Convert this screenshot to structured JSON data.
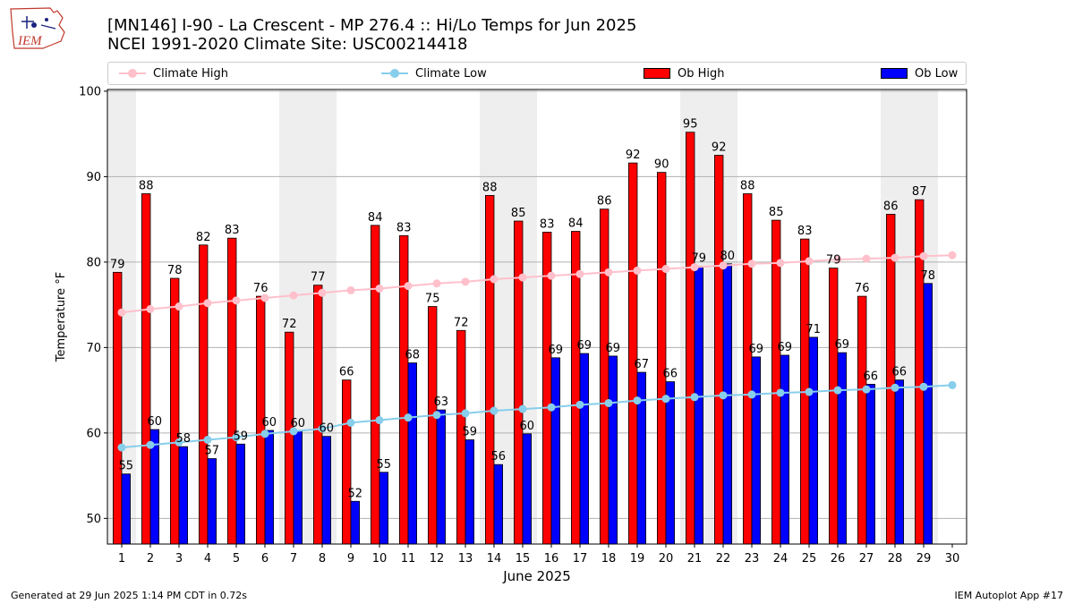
{
  "logo": {
    "text": "IEM"
  },
  "header": {
    "title_line1": "[MN146] I-90 - La Crescent - MP 276.4  :: Hi/Lo Temps for Jun 2025",
    "title_line2": "NCEI 1991-2020 Climate Site: USC00214418"
  },
  "footer": {
    "left": "Generated at 29 Jun 2025 1:14 PM CDT in 0.72s",
    "right": "IEM Autoplot App #17"
  },
  "colors": {
    "ob_high": "#ff0000",
    "ob_low": "#0000ff",
    "climate_high": "#ffc0cb",
    "climate_low": "#87ceeb",
    "weekend_shade": "#eeeeee",
    "grid": "#b0b0b0"
  },
  "chart_data": {
    "type": "bar",
    "xlabel": "June 2025",
    "ylabel": "Temperature °F",
    "ylim": [
      47,
      100.2
    ],
    "yticks": [
      50,
      60,
      70,
      80,
      90,
      100
    ],
    "grid": "horizontal",
    "legend_position": "top",
    "weekend_days": [
      1,
      7,
      8,
      14,
      15,
      21,
      22,
      28,
      29
    ],
    "categories": [
      "1",
      "2",
      "3",
      "4",
      "5",
      "6",
      "7",
      "8",
      "9",
      "10",
      "11",
      "12",
      "13",
      "14",
      "15",
      "16",
      "17",
      "18",
      "19",
      "20",
      "21",
      "22",
      "23",
      "24",
      "25",
      "26",
      "27",
      "28",
      "29",
      "30"
    ],
    "bar_series": [
      {
        "name": "Ob High",
        "values": [
          79,
          88,
          78,
          82,
          83,
          76,
          72,
          77,
          66,
          84,
          83,
          75,
          72,
          88,
          85,
          83,
          84,
          86,
          92,
          90,
          95,
          92,
          88,
          85,
          83,
          79,
          76,
          86,
          87
        ],
        "plotted": [
          78.8,
          88.0,
          78.1,
          82.0,
          82.8,
          76.0,
          71.8,
          77.3,
          66.2,
          84.3,
          83.1,
          74.8,
          72.0,
          87.8,
          84.8,
          83.5,
          83.6,
          86.2,
          91.6,
          90.5,
          95.2,
          92.5,
          88.0,
          84.9,
          82.7,
          79.3,
          76.0,
          85.6,
          87.3
        ]
      },
      {
        "name": "Ob Low",
        "values": [
          55,
          60,
          58,
          57,
          59,
          60,
          60,
          60,
          52,
          55,
          68,
          63,
          59,
          56,
          60,
          69,
          69,
          69,
          67,
          66,
          79,
          80,
          69,
          69,
          71,
          69,
          66,
          66,
          78
        ],
        "plotted": [
          55.2,
          60.4,
          58.4,
          57.0,
          58.7,
          60.3,
          60.2,
          59.6,
          52.0,
          55.4,
          68.2,
          62.7,
          59.2,
          56.3,
          59.9,
          68.8,
          69.3,
          69.0,
          67.1,
          66.0,
          79.5,
          79.8,
          68.9,
          69.1,
          71.2,
          69.4,
          65.7,
          66.2,
          77.5
        ]
      }
    ],
    "line_series": [
      {
        "name": "Climate High",
        "values": [
          74.1,
          74.5,
          74.8,
          75.2,
          75.5,
          75.8,
          76.1,
          76.4,
          76.7,
          76.9,
          77.2,
          77.5,
          77.7,
          78.0,
          78.2,
          78.4,
          78.6,
          78.8,
          79.0,
          79.2,
          79.4,
          79.6,
          79.8,
          79.9,
          80.1,
          80.3,
          80.4,
          80.5,
          80.7,
          80.8
        ]
      },
      {
        "name": "Climate Low",
        "values": [
          58.3,
          58.6,
          58.9,
          59.2,
          59.5,
          59.9,
          60.2,
          60.5,
          61.2,
          61.5,
          61.8,
          62.1,
          62.3,
          62.6,
          62.8,
          63.0,
          63.3,
          63.5,
          63.8,
          64.0,
          64.2,
          64.4,
          64.5,
          64.7,
          64.8,
          65.0,
          65.1,
          65.3,
          65.4,
          65.6
        ]
      }
    ]
  }
}
